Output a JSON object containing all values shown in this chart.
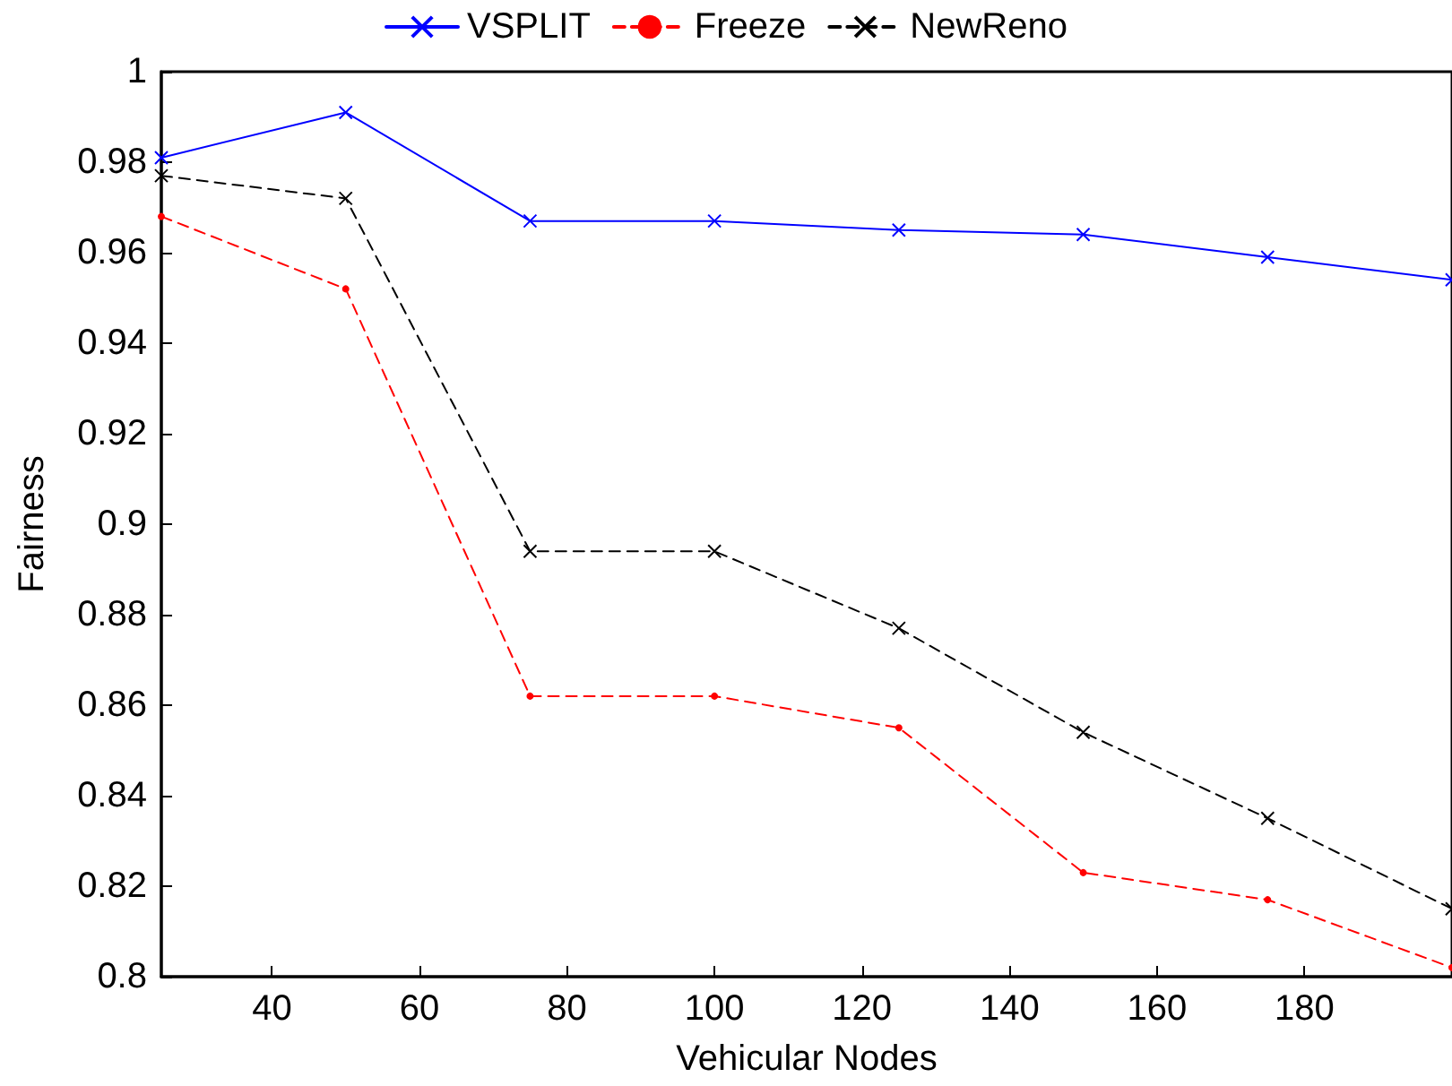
{
  "chart_data": {
    "type": "line",
    "xlabel": "Vehicular Nodes",
    "ylabel": "Fairness",
    "x": [
      25,
      50,
      75,
      100,
      125,
      150,
      175,
      200
    ],
    "xlim": [
      25,
      200
    ],
    "xticks": [
      40,
      60,
      80,
      100,
      120,
      140,
      160,
      180
    ],
    "ylim": [
      0.8,
      1
    ],
    "yticks": [
      0.8,
      0.82,
      0.84,
      0.86,
      0.88,
      0.9,
      0.92,
      0.94,
      0.96,
      0.98,
      1
    ],
    "grid": false,
    "legend": "top",
    "series": [
      {
        "name": "VSPLIT",
        "color": "#0000ff",
        "marker": "cross",
        "line_style": "solid",
        "values": [
          0.981,
          0.991,
          0.967,
          0.967,
          0.965,
          0.964,
          0.959,
          0.954
        ]
      },
      {
        "name": "Freeze",
        "color": "#ff0000",
        "marker": "circle",
        "line_style": "dashed",
        "values": [
          0.968,
          0.952,
          0.862,
          0.862,
          0.855,
          0.823,
          0.817,
          0.802
        ]
      },
      {
        "name": "NewReno",
        "color": "#000000",
        "marker": "cross",
        "line_style": "dashed",
        "values": [
          0.977,
          0.972,
          0.894,
          0.894,
          0.877,
          0.854,
          0.835,
          0.815
        ]
      }
    ]
  }
}
